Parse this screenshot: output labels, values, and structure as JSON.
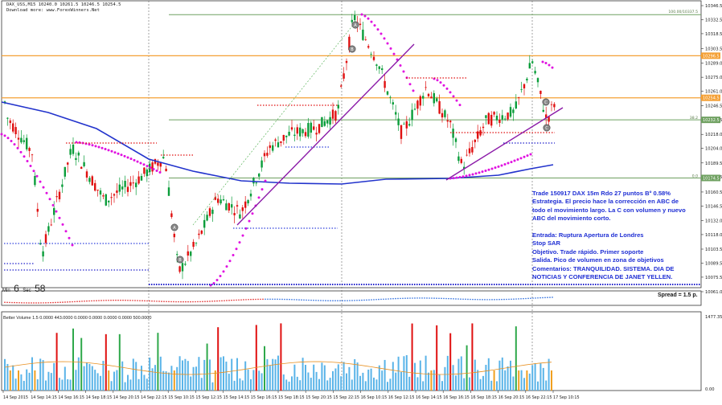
{
  "header": {
    "symbol_line": "DAX_USS,M15  10240.0 10261.5 10246.5 10254.5",
    "source_line": "Download more: www.ForexWinners.Net"
  },
  "timer": {
    "min_label": "Min",
    "min_value": "6",
    "sec_label": "Sec",
    "sec_value": "58"
  },
  "spread_label": "Spread = 1.5 p.",
  "volume_title": "Better Volume 1.5 0.0000 443.0000 0.0000 0.0000 0.0000 0.0000 500.0000",
  "level_labels": {
    "fib_100": "100.00/10337.5",
    "fib_38": "38.2",
    "fib_0": "0.0"
  },
  "note": {
    "lines": [
      "Trade 150917 DAX 15m Rdo 27 puntos Bº 0.58%",
      "Estrategia. El precio hace la corrección en ABC de",
      "todo el movimiento largo. La C con volumen y nuevo",
      "ABC del movimiento corto.",
      "",
      "Entrada: Ruptura Apertura de Londres",
      "Stop SAR",
      "Objetivo. Trade rápido. Primer soporte",
      "Salida. Pico de volumen en zona de objetivos",
      "Comentarios: TRANQUILIDAD. SISTEMA. DIA DE",
      "NOTICIAS Y CONFERENCIA DE JANET YELLEN."
    ]
  },
  "wave_labels": [
    "A",
    "B",
    "C",
    "A",
    "B",
    "C"
  ],
  "chart_data": {
    "type": "candlestick",
    "ylim": [
      10050,
      10360
    ],
    "price_ticks": [
      "10346.5",
      "10332.5",
      "10318.5",
      "10303.5",
      "10289.0",
      "10275.0",
      "10261.0",
      "10246.5",
      "10232.5",
      "10218.0",
      "10204.0",
      "10189.5",
      "10175.5",
      "10160.5",
      "10146.5",
      "10132.0",
      "10118.0",
      "10103.5",
      "10089.5",
      "10075.5",
      "10061.0"
    ],
    "x_labels": [
      "14 Sep 2015",
      "14 Sep 14:15",
      "14 Sep 16:15",
      "14 Sep 18:15",
      "14 Sep 20:15",
      "14 Sep 22:15",
      "15 Sep 10:15",
      "15 Sep 12:15",
      "15 Sep 14:15",
      "15 Sep 16:15",
      "15 Sep 18:15",
      "15 Sep 20:15",
      "15 Sep 22:15",
      "16 Sep 10:15",
      "16 Sep 12:15",
      "16 Sep 14:15",
      "16 Sep 16:15",
      "16 Sep 18:15",
      "16 Sep 20:15",
      "16 Sep 22:15",
      "17 Sep 10:15"
    ],
    "price_boxes": [
      "10296.5",
      "10254.5",
      "10232.5",
      "10174.5"
    ],
    "volume_axis": [
      "1477.35",
      "0.00"
    ],
    "colors": {
      "bull": "#0a9d3a",
      "bear": "#e01010",
      "sar": "#e010e0",
      "ma": "#2233cc",
      "level_orange": "#f4a035",
      "level_green": "#6ea060",
      "trend": "#8b1aa8",
      "note_text": "#1f2fd4"
    }
  }
}
